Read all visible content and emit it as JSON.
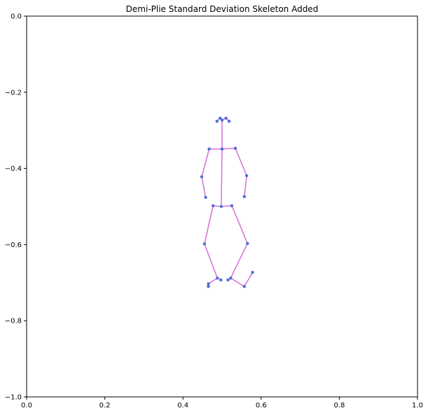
{
  "chart_data": {
    "type": "scatter",
    "title": "Demi-Plie Standard Deviation Skeleton Added",
    "xlabel": "",
    "ylabel": "",
    "xlim": [
      0.0,
      1.0
    ],
    "ylim": [
      -1.0,
      0.0
    ],
    "xticks": [
      "0.0",
      "0.2",
      "0.4",
      "0.6",
      "0.8",
      "1.0"
    ],
    "yticks": [
      "0.0",
      "−0.2",
      "−0.4",
      "−0.6",
      "−0.8",
      "−1.0"
    ],
    "grid": false,
    "colors": {
      "points": "#4f6fd4",
      "skeleton": "#d86fd8"
    },
    "points": [
      {
        "x": 0.5,
        "y": -0.273
      },
      {
        "x": 0.495,
        "y": -0.268
      },
      {
        "x": 0.487,
        "y": -0.276
      },
      {
        "x": 0.51,
        "y": -0.268
      },
      {
        "x": 0.518,
        "y": -0.276
      },
      {
        "x": 0.5,
        "y": -0.349
      },
      {
        "x": 0.467,
        "y": -0.349
      },
      {
        "x": 0.534,
        "y": -0.347
      },
      {
        "x": 0.448,
        "y": -0.422
      },
      {
        "x": 0.563,
        "y": -0.419
      },
      {
        "x": 0.458,
        "y": -0.476
      },
      {
        "x": 0.557,
        "y": -0.474
      },
      {
        "x": 0.498,
        "y": -0.5
      },
      {
        "x": 0.477,
        "y": -0.498
      },
      {
        "x": 0.525,
        "y": -0.498
      },
      {
        "x": 0.455,
        "y": -0.598
      },
      {
        "x": 0.565,
        "y": -0.597
      },
      {
        "x": 0.488,
        "y": -0.688
      },
      {
        "x": 0.497,
        "y": -0.693
      },
      {
        "x": 0.465,
        "y": -0.703
      },
      {
        "x": 0.465,
        "y": -0.71
      },
      {
        "x": 0.522,
        "y": -0.688
      },
      {
        "x": 0.515,
        "y": -0.693
      },
      {
        "x": 0.557,
        "y": -0.71
      },
      {
        "x": 0.578,
        "y": -0.673
      }
    ],
    "connections": [
      [
        0,
        5
      ],
      [
        0,
        1
      ],
      [
        1,
        2
      ],
      [
        0,
        3
      ],
      [
        3,
        4
      ],
      [
        5,
        6
      ],
      [
        5,
        7
      ],
      [
        6,
        8
      ],
      [
        8,
        10
      ],
      [
        7,
        9
      ],
      [
        9,
        11
      ],
      [
        5,
        12
      ],
      [
        12,
        13
      ],
      [
        12,
        14
      ],
      [
        13,
        15
      ],
      [
        15,
        17
      ],
      [
        17,
        19
      ],
      [
        17,
        18
      ],
      [
        14,
        16
      ],
      [
        16,
        21
      ],
      [
        21,
        22
      ],
      [
        21,
        23
      ],
      [
        23,
        24
      ]
    ]
  }
}
